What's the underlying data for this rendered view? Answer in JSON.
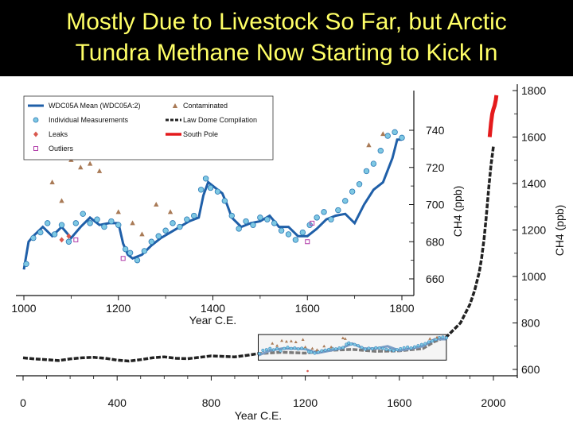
{
  "slide": {
    "title": "Mostly Due to Livestock So Far, but Arctic\nTundra Methane Now Starting to Kick In"
  },
  "colors": {
    "title_text": "#ffff66",
    "header_bg": "#000000",
    "wdc_mean": "#1f5fa8",
    "measurements": "#7ec8e3",
    "measurements_edge": "#2a78b5",
    "leaks": "#d9584e",
    "outliers": "#b03aa8",
    "contaminated": "#a97a56",
    "law_dome": "#222222",
    "south_pole": "#e41a1c"
  },
  "chart_data": [
    {
      "type": "line",
      "panel": "main",
      "xlabel": "Year C.E.",
      "y_left_label": "",
      "y_right_label": "CH4 (ppb)",
      "x_ticks": [
        0,
        400,
        800,
        1200,
        1600,
        2000
      ],
      "y_ticks": [
        600,
        800,
        1000,
        1200,
        1400,
        1600,
        1800
      ],
      "xlim": [
        0,
        2020
      ],
      "ylim": [
        600,
        1840
      ],
      "series": [
        {
          "name": "Law Dome Compilation",
          "x": [
            0,
            50,
            100,
            150,
            200,
            250,
            300,
            350,
            400,
            450,
            500,
            550,
            600,
            650,
            700,
            750,
            800,
            850,
            900,
            950,
            1000,
            1100,
            1200,
            1300,
            1400,
            1500,
            1600,
            1700,
            1750,
            1800,
            1830,
            1860,
            1880,
            1900,
            1920,
            1940,
            1950,
            1960,
            1970,
            1980,
            1990,
            2000
          ],
          "y": [
            650,
            645,
            642,
            638,
            645,
            650,
            652,
            648,
            640,
            636,
            642,
            650,
            654,
            648,
            646,
            652,
            658,
            656,
            654,
            660,
            668,
            674,
            670,
            682,
            686,
            678,
            680,
            690,
            720,
            740,
            770,
            800,
            840,
            880,
            940,
            1020,
            1080,
            1160,
            1260,
            1380,
            1480,
            1560
          ]
        },
        {
          "name": "South Pole",
          "x": [
            1984,
            1990,
            1995,
            2000,
            2005,
            2010,
            2013
          ],
          "y": [
            1600,
            1660,
            1700,
            1720,
            1735,
            1760,
            1780
          ]
        },
        {
          "name": "WDC05A Mean (WDC05A:2)",
          "x": [
            1000,
            1050,
            1100,
            1150,
            1200,
            1250,
            1300,
            1350,
            1400,
            1450,
            1500,
            1550,
            1600,
            1650,
            1700,
            1750,
            1800
          ],
          "y": [
            660,
            681,
            690,
            690,
            688,
            670,
            680,
            690,
            711,
            690,
            690,
            700,
            681,
            690,
            700,
            730,
            730
          ]
        }
      ]
    },
    {
      "type": "scatter",
      "panel": "inset",
      "xlabel": "Year C.E.",
      "y_axis_label": "CH4 (ppb)",
      "x_ticks": [
        1000,
        1200,
        1400,
        1600,
        1800
      ],
      "y_ticks": [
        660,
        680,
        700,
        720,
        740
      ],
      "xlim": [
        1000,
        1850
      ],
      "ylim": [
        655,
        745
      ],
      "legend": {
        "placement": "top-left",
        "entries": [
          "WDC05A Mean (WDC05A:2)",
          "Individual Measurements",
          "Leaks",
          "Outliers",
          "Contaminated",
          "Law Dome Compilation",
          "South Pole"
        ]
      },
      "series": [
        {
          "name": "WDC05A Mean (WDC05A:2)",
          "x": [
            1000,
            1010,
            1020,
            1040,
            1060,
            1080,
            1100,
            1120,
            1140,
            1160,
            1180,
            1200,
            1210,
            1220,
            1230,
            1250,
            1270,
            1290,
            1310,
            1330,
            1350,
            1370,
            1380,
            1390,
            1400,
            1420,
            1430,
            1440,
            1460,
            1480,
            1500,
            1520,
            1540,
            1560,
            1580,
            1600,
            1620,
            1640,
            1660,
            1680,
            1700,
            1720,
            1740,
            1760,
            1780,
            1790,
            1800
          ],
          "y": [
            665,
            680,
            683,
            688,
            683,
            688,
            682,
            688,
            693,
            689,
            690,
            690,
            679,
            673,
            671,
            673,
            678,
            682,
            685,
            688,
            691,
            693,
            705,
            712,
            710,
            706,
            700,
            693,
            688,
            690,
            691,
            694,
            688,
            688,
            683,
            683,
            687,
            692,
            694,
            695,
            690,
            700,
            708,
            712,
            725,
            735,
            735
          ]
        },
        {
          "name": "Individual Measurements",
          "x": [
            1005,
            1020,
            1035,
            1050,
            1065,
            1080,
            1095,
            1110,
            1125,
            1140,
            1155,
            1170,
            1185,
            1200,
            1215,
            1225,
            1240,
            1255,
            1270,
            1285,
            1300,
            1315,
            1330,
            1345,
            1360,
            1375,
            1385,
            1395,
            1410,
            1425,
            1440,
            1455,
            1470,
            1485,
            1500,
            1515,
            1530,
            1545,
            1560,
            1575,
            1590,
            1605,
            1620,
            1635,
            1650,
            1665,
            1680,
            1695,
            1710,
            1725,
            1740,
            1755,
            1770,
            1785,
            1800
          ],
          "y": [
            668,
            682,
            685,
            690,
            684,
            689,
            680,
            690,
            695,
            690,
            692,
            688,
            691,
            689,
            676,
            674,
            670,
            675,
            680,
            683,
            686,
            690,
            688,
            692,
            694,
            708,
            714,
            709,
            707,
            702,
            694,
            687,
            691,
            689,
            693,
            692,
            690,
            686,
            684,
            681,
            685,
            689,
            693,
            696,
            692,
            697,
            702,
            707,
            711,
            718,
            722,
            729,
            737,
            739,
            736
          ]
        },
        {
          "name": "Contaminated",
          "x": [
            1060,
            1080,
            1100,
            1120,
            1140,
            1160,
            1190,
            1200,
            1230,
            1250,
            1280,
            1310,
            1360,
            1370,
            1730,
            1760
          ],
          "y": [
            712,
            702,
            724,
            720,
            722,
            718,
            728,
            696,
            690,
            684,
            700,
            696,
            735,
            732,
            732,
            738
          ]
        },
        {
          "name": "Leaks",
          "x": [
            1080,
            1095
          ],
          "y": [
            681,
            683
          ]
        },
        {
          "name": "Outliers",
          "x": [
            1110,
            1210,
            1600,
            1610
          ],
          "y": [
            681,
            671,
            680,
            690
          ]
        }
      ]
    }
  ]
}
